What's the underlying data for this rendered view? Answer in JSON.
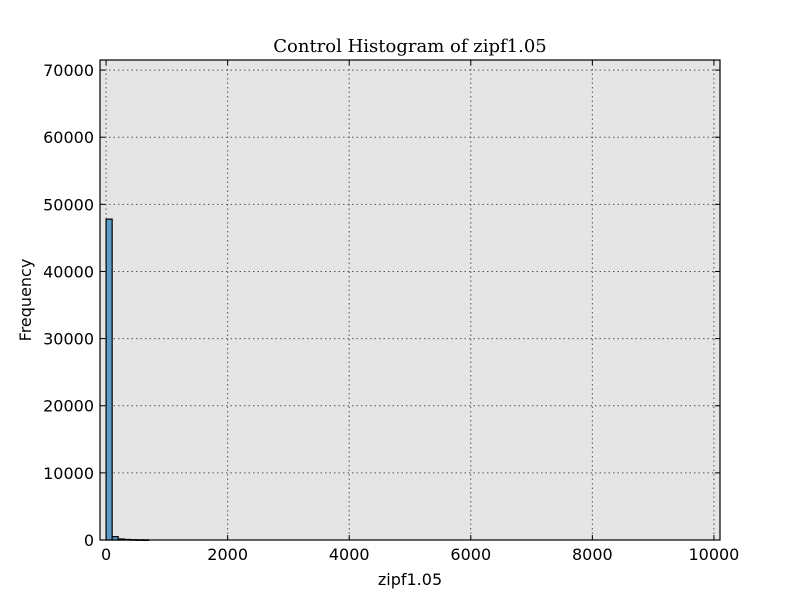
{
  "chart_data": {
    "type": "bar",
    "title": "Control Histogram of zipf1.05",
    "xlabel": "zipf1.05",
    "ylabel": "Frequency",
    "xlim": [
      -100,
      10100
    ],
    "ylim": [
      0,
      71500
    ],
    "xticks": [
      0,
      2000,
      4000,
      6000,
      8000,
      10000
    ],
    "xtick_labels": [
      "0",
      "2000",
      "4000",
      "6000",
      "8000",
      "10000"
    ],
    "yticks": [
      0,
      10000,
      20000,
      30000,
      40000,
      50000,
      60000,
      70000
    ],
    "ytick_labels": [
      "0",
      "10000",
      "20000",
      "30000",
      "40000",
      "50000",
      "60000",
      "70000"
    ],
    "grid": true,
    "bin_width": 100,
    "bins": [
      {
        "x0": 0,
        "x1": 100,
        "value": 47800
      },
      {
        "x0": 100,
        "x1": 200,
        "value": 500
      },
      {
        "x0": 200,
        "x1": 300,
        "value": 150
      },
      {
        "x0": 300,
        "x1": 400,
        "value": 80
      },
      {
        "x0": 400,
        "x1": 500,
        "value": 50
      },
      {
        "x0": 500,
        "x1": 600,
        "value": 30
      },
      {
        "x0": 600,
        "x1": 700,
        "value": 20
      }
    ],
    "colors": {
      "bar_fill": "#5b9bc8",
      "bar_edge": "#000000",
      "plot_background": "#e5e5e5",
      "grid": "#555555"
    }
  }
}
